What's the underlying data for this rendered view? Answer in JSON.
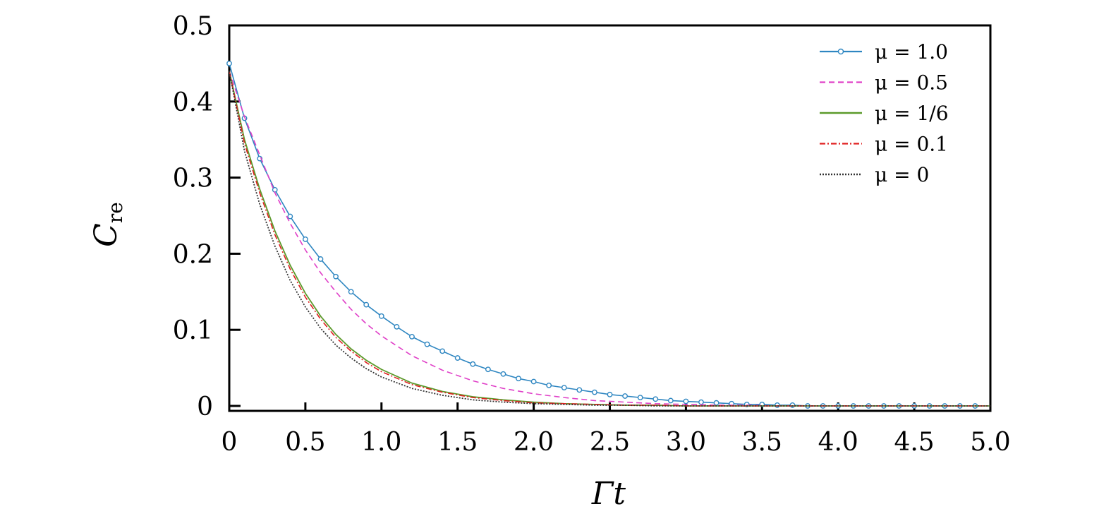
{
  "chart_data": {
    "type": "line",
    "xlabel": "Γt",
    "ylabel": "C",
    "ylabel_sub": "re",
    "xlim": [
      0,
      5
    ],
    "ylim": [
      0,
      0.5
    ],
    "x_ticks": [
      "0",
      "0.5",
      "1.0",
      "1.5",
      "2.0",
      "2.5",
      "3.0",
      "3.5",
      "4.0",
      "4.5",
      "5.0"
    ],
    "y_ticks": [
      "0",
      "0.1",
      "0.2",
      "0.3",
      "0.4",
      "0.5"
    ],
    "grid": false,
    "legend_position": "top-right",
    "series": [
      {
        "name": "μ = 1.0",
        "color": "#2e86c1",
        "style": "solid-marker",
        "x": [
          0,
          0.1,
          0.2,
          0.3,
          0.4,
          0.5,
          0.6,
          0.7,
          0.8,
          0.9,
          1.0,
          1.1,
          1.2,
          1.3,
          1.4,
          1.5,
          1.6,
          1.7,
          1.8,
          1.9,
          2.0,
          2.1,
          2.2,
          2.3,
          2.4,
          2.5,
          2.6,
          2.7,
          2.8,
          2.9,
          3.0,
          3.1,
          3.2,
          3.3,
          3.4,
          3.5,
          3.6,
          3.7,
          3.8,
          3.9,
          4.0,
          4.1,
          4.2,
          4.3,
          4.4,
          4.5,
          4.6,
          4.7,
          4.8,
          4.9
        ],
        "values": [
          0.45,
          0.378,
          0.325,
          0.284,
          0.249,
          0.219,
          0.193,
          0.17,
          0.15,
          0.133,
          0.118,
          0.104,
          0.091,
          0.081,
          0.072,
          0.063,
          0.055,
          0.048,
          0.042,
          0.036,
          0.032,
          0.027,
          0.024,
          0.021,
          0.018,
          0.015,
          0.013,
          0.011,
          0.009,
          0.007,
          0.006,
          0.005,
          0.004,
          0.003,
          0.002,
          0.002,
          0.001,
          0.001,
          0.0,
          0.0,
          0.0,
          0.0,
          0.0,
          0.0,
          0.0,
          0.0,
          0.0,
          0.0,
          0.0,
          0.0
        ]
      },
      {
        "name": "μ = 0.5",
        "color": "#e040c8",
        "style": "dashed",
        "x": [
          0,
          0.1,
          0.2,
          0.3,
          0.4,
          0.5,
          0.6,
          0.7,
          0.8,
          0.9,
          1.0,
          1.2,
          1.4,
          1.6,
          1.8,
          2.0,
          2.2,
          2.4,
          2.6,
          2.8,
          3.0,
          3.2,
          3.4,
          3.6,
          3.8,
          4.0,
          4.5,
          5.0
        ],
        "values": [
          0.44,
          0.38,
          0.33,
          0.28,
          0.24,
          0.205,
          0.175,
          0.15,
          0.127,
          0.108,
          0.092,
          0.066,
          0.047,
          0.033,
          0.023,
          0.016,
          0.011,
          0.007,
          0.005,
          0.003,
          0.002,
          0.001,
          0.001,
          0.0,
          0.0,
          0.0,
          0.0,
          0.0
        ]
      },
      {
        "name": "μ = 1/6",
        "color": "#5b9a2b",
        "style": "solid",
        "x": [
          0,
          0.1,
          0.2,
          0.3,
          0.4,
          0.5,
          0.6,
          0.7,
          0.8,
          0.9,
          1.0,
          1.2,
          1.4,
          1.6,
          1.8,
          2.0,
          2.2,
          2.4,
          2.6,
          2.8,
          3.0,
          3.5,
          4.0,
          4.5,
          5.0
        ],
        "values": [
          0.44,
          0.35,
          0.285,
          0.23,
          0.185,
          0.148,
          0.118,
          0.094,
          0.075,
          0.06,
          0.048,
          0.03,
          0.019,
          0.012,
          0.008,
          0.005,
          0.003,
          0.002,
          0.001,
          0.001,
          0.0,
          0.0,
          0.0,
          0.0,
          0.0
        ]
      },
      {
        "name": "μ = 0.1",
        "color": "#e02020",
        "style": "dashdot",
        "x": [
          0,
          0.1,
          0.2,
          0.3,
          0.4,
          0.5,
          0.6,
          0.7,
          0.8,
          0.9,
          1.0,
          1.2,
          1.4,
          1.6,
          1.8,
          2.0,
          2.2,
          2.4,
          2.6,
          2.8,
          3.0,
          3.5,
          4.0,
          4.5,
          5.0
        ],
        "values": [
          0.44,
          0.345,
          0.28,
          0.225,
          0.18,
          0.143,
          0.114,
          0.09,
          0.072,
          0.057,
          0.045,
          0.028,
          0.018,
          0.011,
          0.007,
          0.004,
          0.003,
          0.002,
          0.001,
          0.001,
          0.0,
          0.0,
          0.0,
          0.0,
          0.0
        ]
      },
      {
        "name": "μ = 0",
        "color": "#333333",
        "style": "dotted",
        "x": [
          0,
          0.1,
          0.2,
          0.3,
          0.4,
          0.5,
          0.6,
          0.7,
          0.8,
          0.9,
          1.0,
          1.2,
          1.4,
          1.6,
          1.8,
          2.0,
          2.2,
          2.4,
          2.6,
          2.8,
          3.0,
          3.5,
          4.0,
          4.5,
          5.0
        ],
        "values": [
          0.44,
          0.335,
          0.265,
          0.21,
          0.165,
          0.13,
          0.102,
          0.08,
          0.063,
          0.049,
          0.038,
          0.023,
          0.014,
          0.008,
          0.005,
          0.003,
          0.002,
          0.001,
          0.001,
          0.0,
          0.0,
          0.0,
          0.0,
          0.0,
          0.0
        ]
      }
    ]
  }
}
